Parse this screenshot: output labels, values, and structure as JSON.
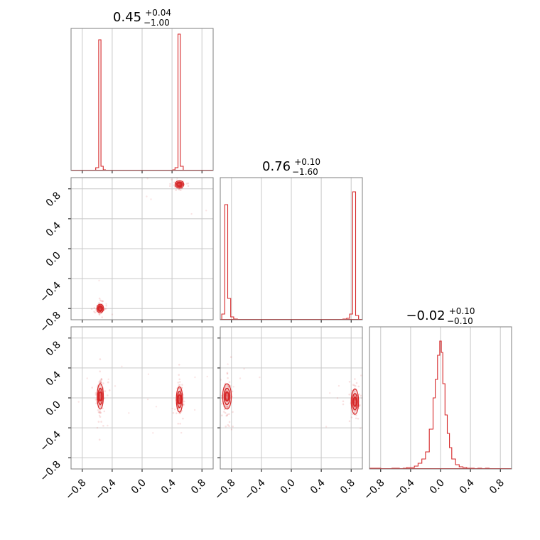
{
  "chart_data": {
    "type": "corner",
    "title": "",
    "parameters": [
      {
        "title_value": "0.45",
        "title_plus": "+0.04",
        "title_minus": "−1.00"
      },
      {
        "title_value": "0.76",
        "title_plus": "+0.10",
        "title_minus": "−1.60"
      },
      {
        "title_value": "−0.02",
        "title_plus": "+0.10",
        "title_minus": "−0.10"
      }
    ],
    "axis_range": [
      -0.95,
      0.95
    ],
    "tick_values": [
      -0.8,
      -0.4,
      0.0,
      0.4,
      0.8
    ],
    "tick_labels": [
      "−0.8",
      "−0.4",
      "0.0",
      "0.4",
      "0.8"
    ],
    "grid": true,
    "color": "#d62728",
    "histograms": [
      {
        "param": 0,
        "bins": [
          {
            "x": [
              -0.62,
              -0.58
            ],
            "h": 0.02
          },
          {
            "x": [
              -0.58,
              -0.55
            ],
            "h": 0.92
          },
          {
            "x": [
              -0.55,
              -0.52
            ],
            "h": 0.03
          },
          {
            "x": [
              -0.52,
              -0.49
            ],
            "h": 0.005
          },
          {
            "x": [
              0.41,
              0.44
            ],
            "h": 0.005
          },
          {
            "x": [
              0.44,
              0.48
            ],
            "h": 0.02
          },
          {
            "x": [
              0.48,
              0.51
            ],
            "h": 0.96
          },
          {
            "x": [
              0.51,
              0.55
            ],
            "h": 0.03
          }
        ]
      },
      {
        "param": 1,
        "bins": [
          {
            "x": [
              -0.93,
              -0.89
            ],
            "h": 0.04
          },
          {
            "x": [
              -0.89,
              -0.85
            ],
            "h": 0.81
          },
          {
            "x": [
              -0.85,
              -0.81
            ],
            "h": 0.15
          },
          {
            "x": [
              -0.81,
              -0.77
            ],
            "h": 0.02
          },
          {
            "x": [
              -0.77,
              -0.72
            ],
            "h": 0.005
          },
          {
            "x": [
              0.69,
              0.74
            ],
            "h": 0.005
          },
          {
            "x": [
              0.74,
              0.78
            ],
            "h": 0.01
          },
          {
            "x": [
              0.78,
              0.82
            ],
            "h": 0.04
          },
          {
            "x": [
              0.82,
              0.86
            ],
            "h": 0.9
          },
          {
            "x": [
              0.86,
              0.9
            ],
            "h": 0.03
          }
        ]
      },
      {
        "param": 2,
        "bins": [
          {
            "x": [
              -0.95,
              -0.9
            ],
            "h": 0.005
          },
          {
            "x": [
              -0.9,
              -0.85
            ],
            "h": 0.005
          },
          {
            "x": [
              -0.85,
              -0.8
            ],
            "h": 0.005
          },
          {
            "x": [
              -0.65,
              -0.6
            ],
            "h": 0.005
          },
          {
            "x": [
              -0.6,
              -0.55
            ],
            "h": 0.005
          },
          {
            "x": [
              -0.5,
              -0.45
            ],
            "h": 0.005
          },
          {
            "x": [
              -0.45,
              -0.4
            ],
            "h": 0.01
          },
          {
            "x": [
              -0.4,
              -0.35
            ],
            "h": 0.01
          },
          {
            "x": [
              -0.35,
              -0.3
            ],
            "h": 0.02
          },
          {
            "x": [
              -0.3,
              -0.25
            ],
            "h": 0.04
          },
          {
            "x": [
              -0.25,
              -0.2
            ],
            "h": 0.07
          },
          {
            "x": [
              -0.2,
              -0.15
            ],
            "h": 0.12
          },
          {
            "x": [
              -0.15,
              -0.1
            ],
            "h": 0.28
          },
          {
            "x": [
              -0.1,
              -0.07
            ],
            "h": 0.5
          },
          {
            "x": [
              -0.07,
              -0.04
            ],
            "h": 0.63
          },
          {
            "x": [
              -0.04,
              -0.01
            ],
            "h": 0.8
          },
          {
            "x": [
              -0.01,
              0.01
            ],
            "h": 0.9
          },
          {
            "x": [
              0.01,
              0.03
            ],
            "h": 0.82
          },
          {
            "x": [
              0.03,
              0.06
            ],
            "h": 0.6
          },
          {
            "x": [
              0.06,
              0.09
            ],
            "h": 0.38
          },
          {
            "x": [
              0.09,
              0.12
            ],
            "h": 0.25
          },
          {
            "x": [
              0.12,
              0.15
            ],
            "h": 0.15
          },
          {
            "x": [
              0.15,
              0.2
            ],
            "h": 0.07
          },
          {
            "x": [
              0.2,
              0.25
            ],
            "h": 0.03
          },
          {
            "x": [
              0.25,
              0.3
            ],
            "h": 0.015
          },
          {
            "x": [
              0.3,
              0.35
            ],
            "h": 0.01
          },
          {
            "x": [
              0.35,
              0.4
            ],
            "h": 0.005
          },
          {
            "x": [
              0.4,
              0.45
            ],
            "h": 0.005
          },
          {
            "x": [
              0.5,
              0.55
            ],
            "h": 0.005
          },
          {
            "x": [
              0.6,
              0.65
            ],
            "h": 0.005
          }
        ]
      }
    ],
    "scatter_panels": [
      {
        "x_param": 0,
        "y_param": 1,
        "clusters": [
          {
            "x": -0.56,
            "y": -0.8,
            "sx": 0.022,
            "sy": 0.03,
            "n": 90
          },
          {
            "x": 0.5,
            "y": 0.86,
            "sx": 0.03,
            "sy": 0.025,
            "n": 90
          }
        ]
      },
      {
        "x_param": 0,
        "y_param": 2,
        "clusters": [
          {
            "x": -0.56,
            "y": 0.02,
            "sx": 0.02,
            "sy": 0.1,
            "n": 110
          },
          {
            "x": 0.5,
            "y": -0.02,
            "sx": 0.02,
            "sy": 0.1,
            "n": 110
          }
        ]
      },
      {
        "x_param": 1,
        "y_param": 2,
        "clusters": [
          {
            "x": -0.86,
            "y": 0.02,
            "sx": 0.03,
            "sy": 0.1,
            "n": 110
          },
          {
            "x": 0.85,
            "y": -0.05,
            "sx": 0.025,
            "sy": 0.1,
            "n": 110
          }
        ]
      }
    ]
  }
}
